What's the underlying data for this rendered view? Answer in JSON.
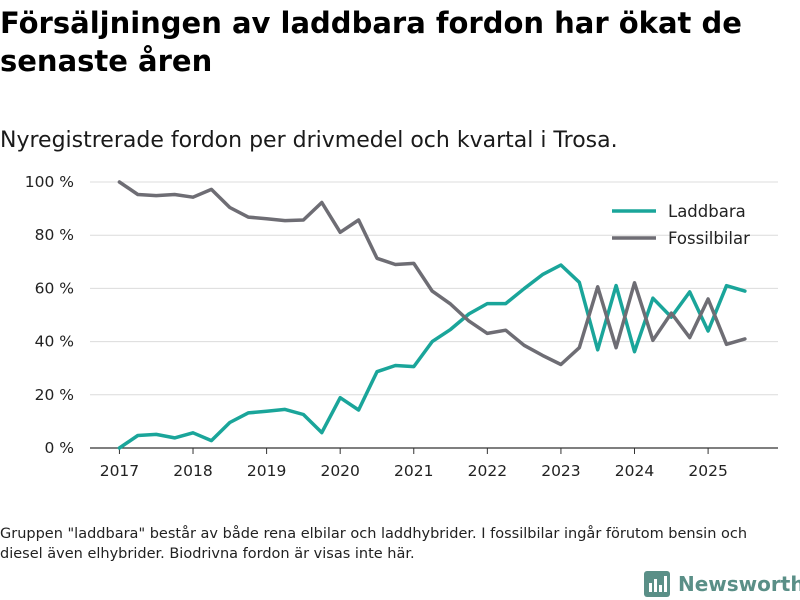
{
  "title": "Försäljningen av laddbara fordon har ökat de senaste åren",
  "subtitle": "Nyregistrerade fordon per drivmedel och kvartal i Trosa.",
  "footnote": "Gruppen \"laddbara\" består av både rena elbilar och laddhybrider. I fossilbilar ingår förutom bensin och diesel även elhybrider. Biodrivna fordon är visas inte här.",
  "brand": {
    "name": "Newsworthy",
    "logo_icon": "bar-chart-logo-icon",
    "color": "#5a8f87"
  },
  "chart_data": {
    "type": "line",
    "title": "Försäljningen av laddbara fordon har ökat de senaste åren",
    "xlabel": "",
    "ylabel": "",
    "xlim": [
      2016.6,
      2025.95
    ],
    "ylim": [
      0,
      100
    ],
    "x_ticks": [
      2017,
      2018,
      2019,
      2020,
      2021,
      2022,
      2023,
      2024,
      2025
    ],
    "y_ticks": [
      0,
      20,
      40,
      60,
      80,
      100
    ],
    "y_tick_labels": [
      "0 %",
      "20 %",
      "40 %",
      "60 %",
      "80 %",
      "100 %"
    ],
    "grid": true,
    "legend_position": "top-right",
    "x": [
      2017.0,
      2017.25,
      2017.5,
      2017.75,
      2018.0,
      2018.25,
      2018.5,
      2018.75,
      2019.0,
      2019.25,
      2019.5,
      2019.75,
      2020.0,
      2020.25,
      2020.5,
      2020.75,
      2021.0,
      2021.25,
      2021.5,
      2021.75,
      2022.0,
      2022.25,
      2022.5,
      2022.75,
      2023.0,
      2023.25,
      2023.5,
      2023.75,
      2024.0,
      2024.25,
      2024.5,
      2024.75,
      2025.0,
      2025.25,
      2025.5
    ],
    "series": [
      {
        "name": "Laddbara",
        "color": "#1aa59a",
        "values": [
          0,
          4.7,
          5.1,
          3.8,
          5.7,
          2.8,
          9.6,
          13.2,
          13.8,
          14.5,
          12.6,
          5.8,
          18.9,
          14.3,
          28.7,
          31.0,
          30.6,
          40.0,
          44.6,
          50.4,
          54.3,
          54.3,
          59.9,
          65.2,
          68.8,
          62.3,
          36.9,
          61.1,
          36.2,
          56.3,
          49.2,
          58.7,
          44.0,
          61.0,
          59.0
        ]
      },
      {
        "name": "Fossilbilar",
        "color": "#6e6d74",
        "values": [
          100,
          95.3,
          94.9,
          95.3,
          94.3,
          97.2,
          90.4,
          86.8,
          86.2,
          85.5,
          85.7,
          92.3,
          81.1,
          85.7,
          71.3,
          69.0,
          69.4,
          59.0,
          54.1,
          47.7,
          43.1,
          44.3,
          38.6,
          34.8,
          31.4,
          37.7,
          60.6,
          37.7,
          62.1,
          40.5,
          50.7,
          41.5,
          56.0,
          39.0,
          41.0
        ]
      }
    ]
  }
}
